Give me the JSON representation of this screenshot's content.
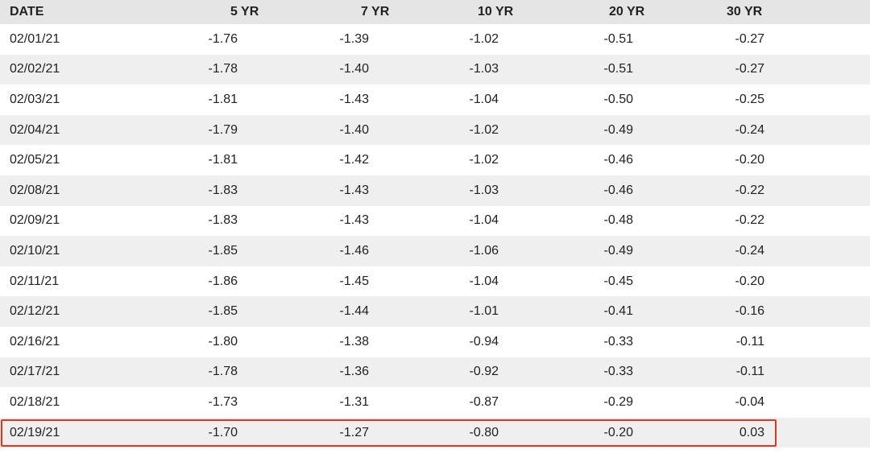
{
  "headers": [
    "DATE",
    "5 YR",
    "7 YR",
    "10 YR",
    "20 YR",
    "30 YR"
  ],
  "rows": [
    [
      "02/01/21",
      "-1.76",
      "-1.39",
      "-1.02",
      "-0.51",
      "-0.27"
    ],
    [
      "02/02/21",
      "-1.78",
      "-1.40",
      "-1.03",
      "-0.51",
      "-0.27"
    ],
    [
      "02/03/21",
      "-1.81",
      "-1.43",
      "-1.04",
      "-0.50",
      "-0.25"
    ],
    [
      "02/04/21",
      "-1.79",
      "-1.40",
      "-1.02",
      "-0.49",
      "-0.24"
    ],
    [
      "02/05/21",
      "-1.81",
      "-1.42",
      "-1.02",
      "-0.46",
      "-0.20"
    ],
    [
      "02/08/21",
      "-1.83",
      "-1.43",
      "-1.03",
      "-0.46",
      "-0.22"
    ],
    [
      "02/09/21",
      "-1.83",
      "-1.43",
      "-1.04",
      "-0.48",
      "-0.22"
    ],
    [
      "02/10/21",
      "-1.85",
      "-1.46",
      "-1.06",
      "-0.49",
      "-0.24"
    ],
    [
      "02/11/21",
      "-1.86",
      "-1.45",
      "-1.04",
      "-0.45",
      "-0.20"
    ],
    [
      "02/12/21",
      "-1.85",
      "-1.44",
      "-1.01",
      "-0.41",
      "-0.16"
    ],
    [
      "02/16/21",
      "-1.80",
      "-1.38",
      "-0.94",
      "-0.33",
      "-0.11"
    ],
    [
      "02/17/21",
      "-1.78",
      "-1.36",
      "-0.92",
      "-0.33",
      "-0.11"
    ],
    [
      "02/18/21",
      "-1.73",
      "-1.31",
      "-0.87",
      "-0.29",
      "-0.04"
    ],
    [
      "02/19/21",
      "-1.70",
      "-1.27",
      "-0.80",
      "-0.20",
      "0.03"
    ]
  ],
  "highlighted_row_date": "02/19/21",
  "colors": {
    "header_background": "#e5e5e5",
    "stripe_background": "#efefef",
    "highlight_border": "#e8341c",
    "text": "#222222"
  }
}
